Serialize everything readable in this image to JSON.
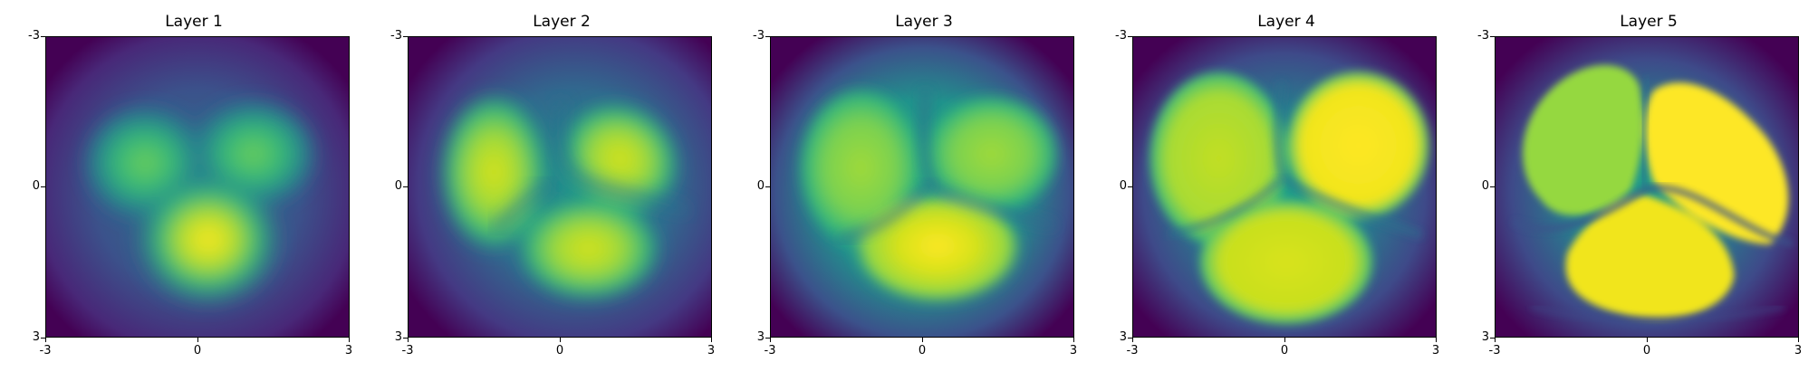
{
  "chart_data": [
    {
      "type": "heatmap",
      "title": "Layer 1",
      "colormap": "viridis",
      "xlim": [
        -3,
        3
      ],
      "ylim": [
        3,
        -3
      ],
      "xticks": [
        "-3",
        "0",
        "3"
      ],
      "yticks": [
        "-3",
        "0",
        "3"
      ],
      "regions": [
        {
          "label": "upper-left lobe",
          "center": [
            -1.0,
            -0.6
          ],
          "intensity": 0.72
        },
        {
          "label": "upper-right lobe",
          "center": [
            1.0,
            -0.7
          ],
          "intensity": 0.76
        },
        {
          "label": "lower lobe",
          "center": [
            0.2,
            0.9
          ],
          "intensity": 0.95
        }
      ],
      "background": 0.05
    },
    {
      "type": "heatmap",
      "title": "Layer 2",
      "colormap": "viridis",
      "xlim": [
        -3,
        3
      ],
      "ylim": [
        3,
        -3
      ],
      "xticks": [
        "-3",
        "0",
        "3"
      ],
      "yticks": [
        "-3",
        "0",
        "3"
      ],
      "regions": [
        {
          "label": "upper-left lobe",
          "center": [
            -1.4,
            -0.4
          ],
          "intensity": 0.85
        },
        {
          "label": "upper-right lobe",
          "center": [
            1.2,
            -0.4
          ],
          "intensity": 0.8
        },
        {
          "label": "lower lobe",
          "center": [
            0.6,
            1.2
          ],
          "intensity": 0.82
        }
      ],
      "background": 0.04
    },
    {
      "type": "heatmap",
      "title": "Layer 3",
      "colormap": "viridis",
      "xlim": [
        -3,
        3
      ],
      "ylim": [
        3,
        -3
      ],
      "xticks": [
        "-3",
        "0",
        "3"
      ],
      "yticks": [
        "-3",
        "0",
        "3"
      ],
      "regions": [
        {
          "label": "upper-left lobe",
          "center": [
            -1.2,
            -0.5
          ],
          "intensity": 0.82
        },
        {
          "label": "upper-right lobe",
          "center": [
            1.3,
            -0.6
          ],
          "intensity": 0.82
        },
        {
          "label": "lower lobe",
          "center": [
            0.4,
            1.4
          ],
          "intensity": 0.92
        }
      ],
      "background": 0.05
    },
    {
      "type": "heatmap",
      "title": "Layer 4",
      "colormap": "viridis",
      "xlim": [
        -3,
        3
      ],
      "ylim": [
        3,
        -3
      ],
      "xticks": [
        "-3",
        "0",
        "3"
      ],
      "yticks": [
        "-3",
        "0",
        "3"
      ],
      "regions": [
        {
          "label": "upper-left lobe",
          "center": [
            -1.3,
            -0.7
          ],
          "intensity": 0.88
        },
        {
          "label": "upper-right lobe",
          "center": [
            1.4,
            -0.6
          ],
          "intensity": 0.97
        },
        {
          "label": "lower lobe",
          "center": [
            0.3,
            1.4
          ],
          "intensity": 0.9
        }
      ],
      "background": 0.02
    },
    {
      "type": "heatmap",
      "title": "Layer 5",
      "colormap": "viridis",
      "xlim": [
        -3,
        3
      ],
      "ylim": [
        3,
        -3
      ],
      "xticks": [
        "-3",
        "0",
        "3"
      ],
      "yticks": [
        "-3",
        "0",
        "3"
      ],
      "regions": [
        {
          "label": "upper-left lobe",
          "center": [
            -1.4,
            -0.8
          ],
          "intensity": 0.82
        },
        {
          "label": "upper-right lobe",
          "center": [
            1.5,
            -0.6
          ],
          "intensity": 0.98
        },
        {
          "label": "lower lobe",
          "center": [
            0.5,
            1.4
          ],
          "intensity": 0.97
        }
      ],
      "background": 0.02
    }
  ]
}
